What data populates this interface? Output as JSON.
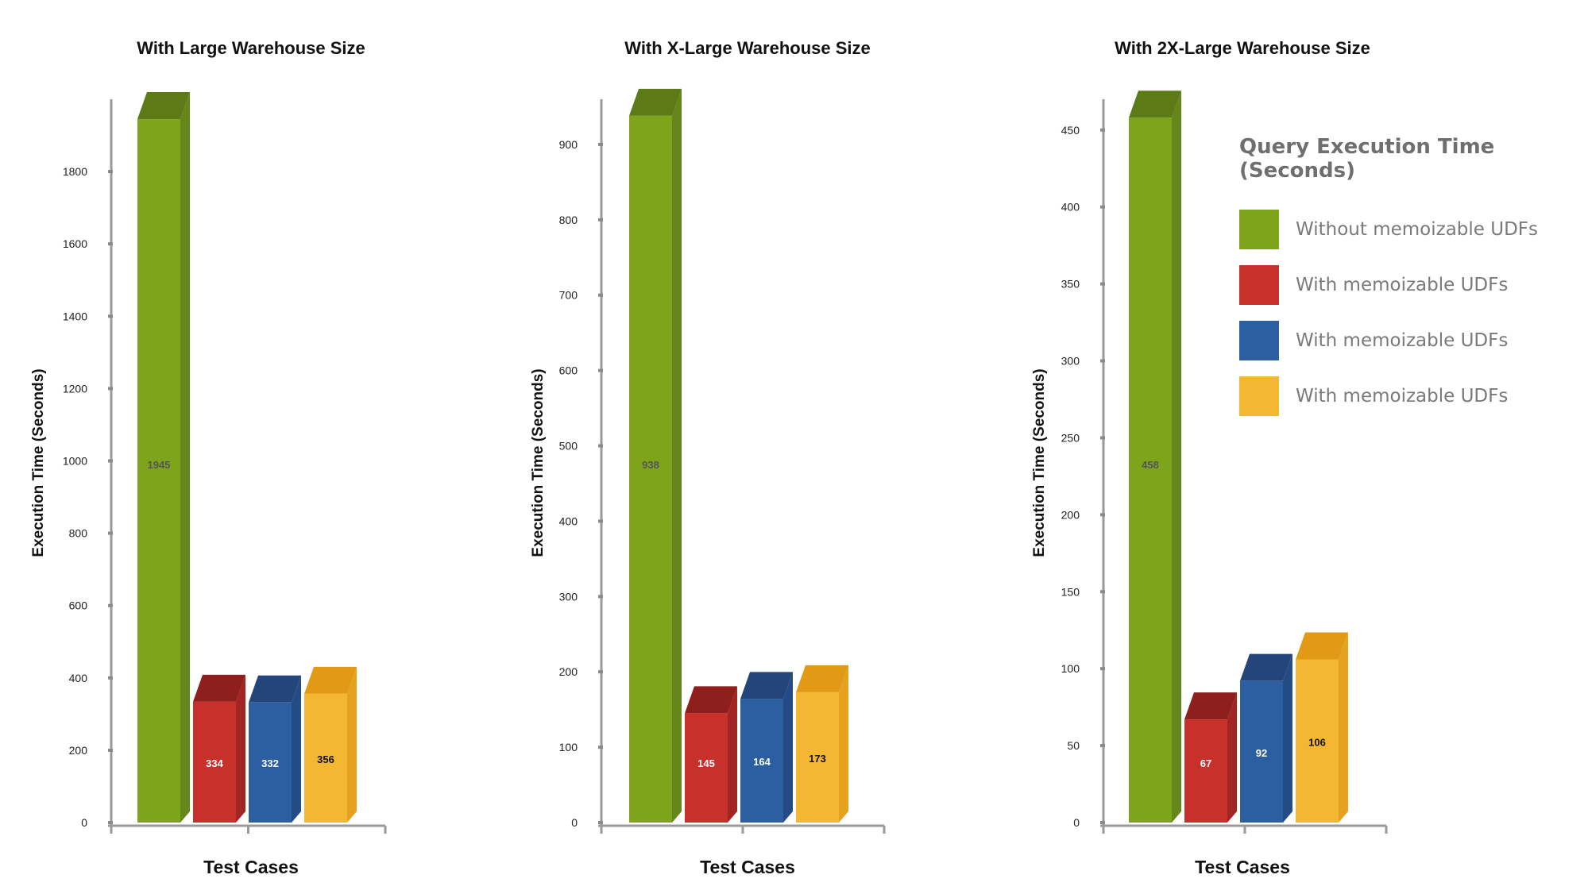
{
  "chart_data": [
    {
      "type": "bar",
      "title": "With Large Warehouse Size",
      "xlabel": "Test Cases",
      "ylabel": "Execution Time (Seconds)",
      "ylim": [
        0,
        2000
      ],
      "yticks": [
        0,
        200,
        400,
        600,
        800,
        1000,
        1200,
        1400,
        1600,
        1800
      ],
      "values": [
        1945,
        334,
        332,
        356
      ]
    },
    {
      "type": "bar",
      "title": "With X-Large Warehouse Size",
      "xlabel": "Test Cases",
      "ylabel": "Execution Time (Seconds)",
      "ylim": [
        0,
        960
      ],
      "yticks": [
        0,
        100,
        200,
        300,
        400,
        500,
        600,
        700,
        800,
        900
      ],
      "values": [
        938,
        145,
        164,
        173
      ]
    },
    {
      "type": "bar",
      "title": "With 2X-Large Warehouse Size",
      "xlabel": "Test Cases",
      "ylabel": "Execution Time (Seconds)",
      "ylim": [
        0,
        470
      ],
      "yticks": [
        0,
        50,
        100,
        150,
        200,
        250,
        300,
        350,
        400,
        450
      ],
      "values": [
        458,
        67,
        92,
        106
      ]
    }
  ],
  "legend": {
    "title": "Query Execution Time (Seconds)",
    "items": [
      {
        "label": "Without memoizable UDFs",
        "color": "#7ea41b"
      },
      {
        "label": "With memoizable UDFs",
        "color": "#c8302b"
      },
      {
        "label": "With memoizable UDFs",
        "color": "#2c5fa2"
      },
      {
        "label": "With memoizable UDFs",
        "color": "#f4b731"
      }
    ]
  },
  "colors": {
    "green": "#7ea41b",
    "green_top": "#5c7a16",
    "green_side": "#65861a",
    "red": "#c8302b",
    "red_top": "#8e1f1d",
    "red_side": "#a12522",
    "blue": "#2c5fa2",
    "blue_top": "#24457a",
    "blue_side": "#244b85",
    "yellow": "#f4b731",
    "yellow_top": "#e29a16",
    "yellow_side": "#e6a11f",
    "value_label_dark": "#555555",
    "value_label_light": "#ffffff",
    "value_label_black": "#111111"
  }
}
